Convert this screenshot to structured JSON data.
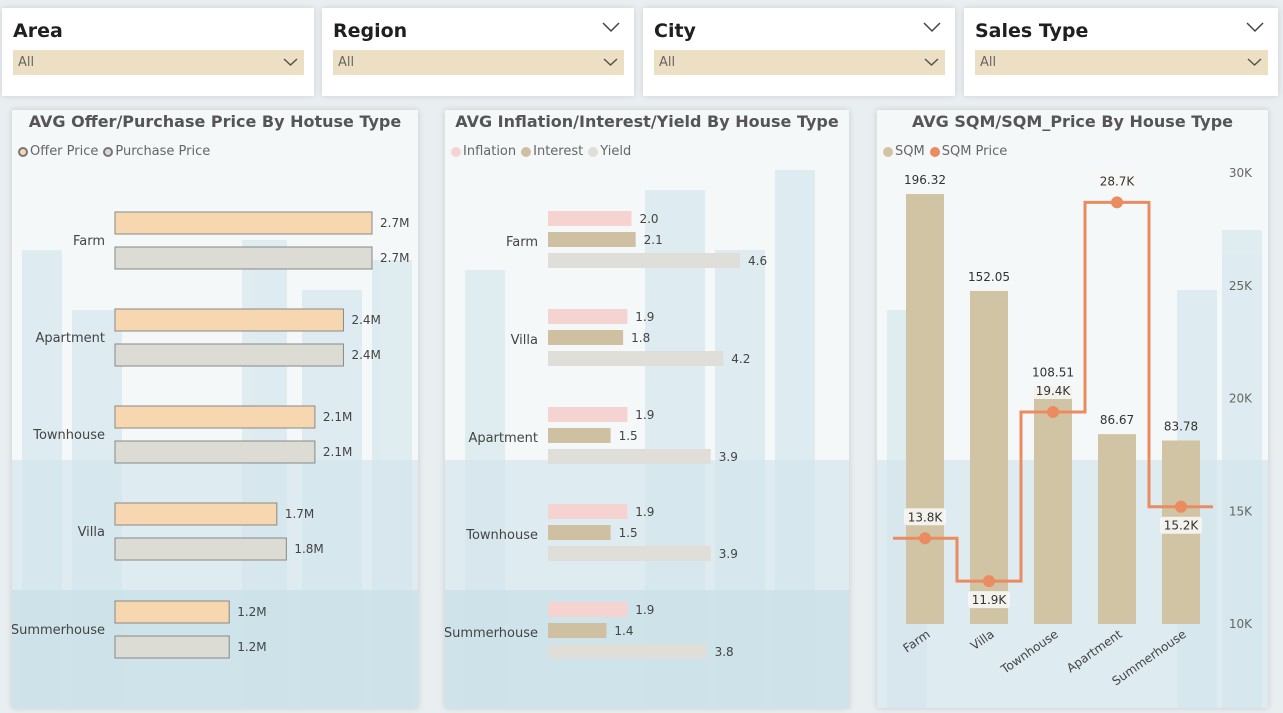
{
  "filters": [
    {
      "label": "Area",
      "value": "All",
      "show_top_chevron": false
    },
    {
      "label": "Region",
      "value": "All",
      "show_top_chevron": true
    },
    {
      "label": "City",
      "value": "All",
      "show_top_chevron": true
    },
    {
      "label": "Sales Type",
      "value": "All",
      "show_top_chevron": true
    }
  ],
  "chart_data": [
    {
      "type": "bar",
      "orientation": "horizontal",
      "title": "AVG Offer/Purchase Price By Hotuse Type",
      "categories": [
        "Farm",
        "Apartment",
        "Townhouse",
        "Villa",
        "Summerhouse"
      ],
      "series": [
        {
          "name": "Offer Price",
          "color": "#f7d7b0",
          "values": [
            2700000,
            2400000,
            2100000,
            1700000,
            1200000
          ],
          "labels": [
            "2.7M",
            "2.4M",
            "2.1M",
            "1.7M",
            "1.2M"
          ]
        },
        {
          "name": "Purchase Price",
          "color": "#dcdcd4",
          "values": [
            2700000,
            2400000,
            2100000,
            1800000,
            1200000
          ],
          "labels": [
            "2.7M",
            "2.4M",
            "2.1M",
            "1.8M",
            "1.2M"
          ]
        }
      ],
      "legend": "top-left"
    },
    {
      "type": "bar",
      "orientation": "horizontal",
      "title": "AVG Inflation/Interest/Yield By House Type",
      "categories": [
        "Farm",
        "Villa",
        "Apartment",
        "Townhouse",
        "Summerhouse"
      ],
      "series": [
        {
          "name": "Inflation",
          "color": "#f5d3d0",
          "values": [
            2.0,
            1.9,
            1.9,
            1.9,
            1.9
          ],
          "labels": [
            "2.0",
            "1.9",
            "1.9",
            "1.9",
            "1.9"
          ]
        },
        {
          "name": "Interest",
          "color": "#cfc0a1",
          "values": [
            2.1,
            1.8,
            1.5,
            1.5,
            1.4
          ],
          "labels": [
            "2.1",
            "1.8",
            "1.5",
            "1.5",
            "1.4"
          ]
        },
        {
          "name": "Yield",
          "color": "#dfded9",
          "values": [
            4.6,
            4.2,
            3.9,
            3.9,
            3.8
          ],
          "labels": [
            "4.6",
            "4.2",
            "3.9",
            "3.9",
            "3.8"
          ]
        }
      ],
      "legend": "top-left"
    },
    {
      "type": "bar",
      "combo": "bar+line",
      "title": "AVG SQM/SQM_Price By House Type",
      "categories": [
        "Farm",
        "Villa",
        "Townhouse",
        "Apartment",
        "Summerhouse"
      ],
      "series": [
        {
          "name": "SQM",
          "kind": "bar",
          "color": "#d1c4a4",
          "values": [
            196.32,
            152.05,
            108.51,
            86.67,
            83.78
          ],
          "labels": [
            "196.32",
            "152.05",
            "108.51",
            "86.67",
            "83.78"
          ]
        },
        {
          "name": "SQM Price",
          "kind": "step-line",
          "color": "#ea8b60",
          "axis": "right",
          "values": [
            13800,
            11900,
            19400,
            28700,
            15200
          ],
          "labels": [
            "13.8K",
            "11.9K",
            "19.4K",
            "28.7K",
            "15.2K"
          ]
        }
      ],
      "right_axis": {
        "ticks": [
          "30K",
          "25K",
          "20K",
          "15K",
          "10K"
        ],
        "tick_values": [
          30000,
          25000,
          20000,
          15000,
          10000
        ],
        "range": [
          10000,
          30000
        ]
      },
      "legend": "top-left"
    }
  ]
}
